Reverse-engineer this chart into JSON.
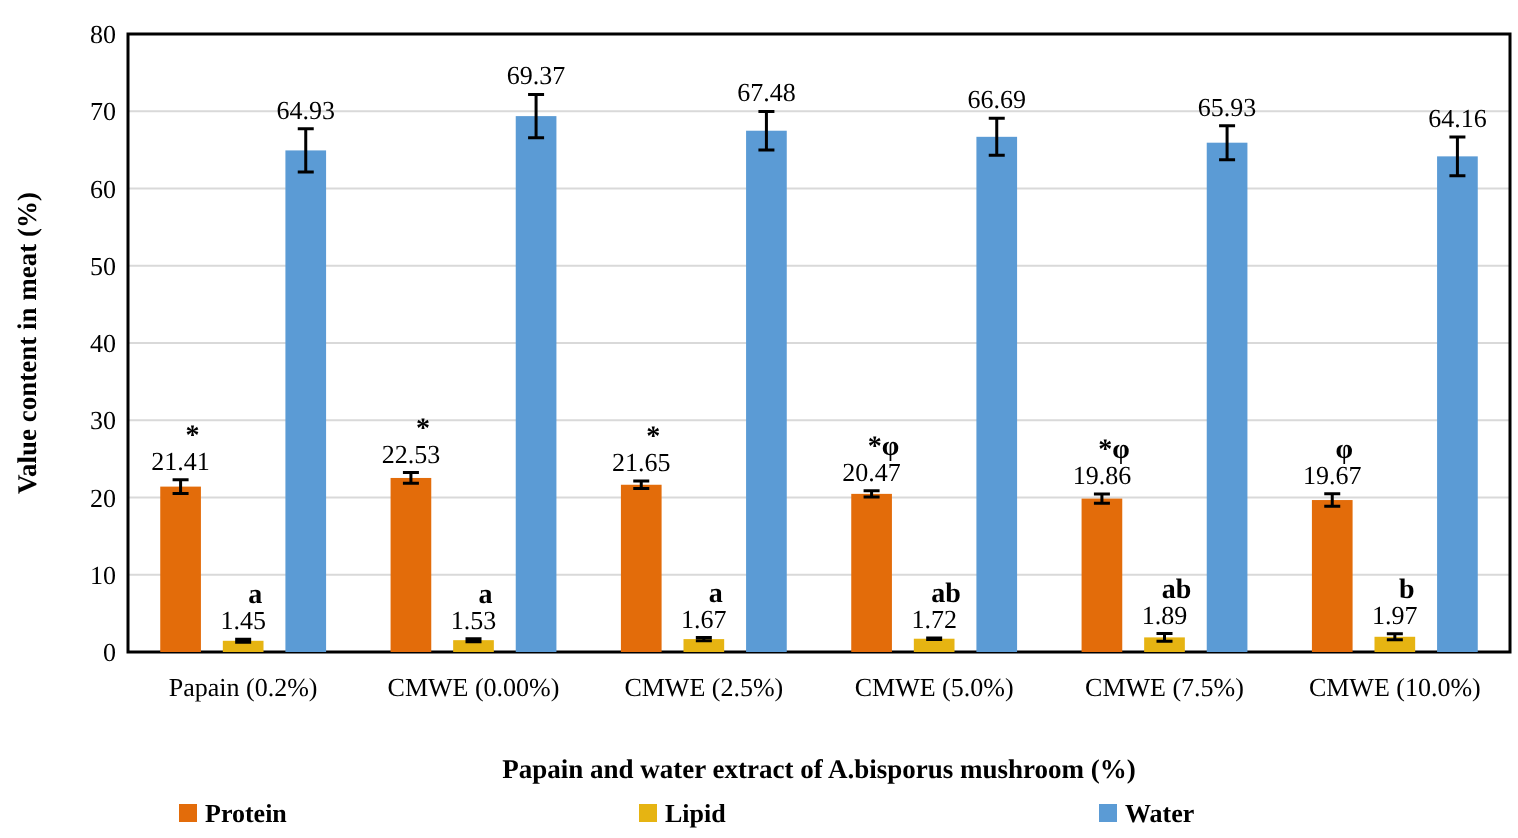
{
  "chart_data": {
    "type": "bar",
    "xlabel": "Papain and water extract of A.bisporus mushroom  (%)",
    "ylabel": "Value content in meat (%)",
    "categories": [
      "Papain (0.2%)",
      "CMWE (0.00%)",
      "CMWE (2.5%)",
      "CMWE (5.0%)",
      "CMWE (7.5%)",
      "CMWE (10.0%)"
    ],
    "series": [
      {
        "name": "Protein",
        "color": "#e36c0a",
        "values": [
          21.41,
          22.53,
          21.65,
          20.47,
          19.86,
          19.67
        ],
        "errors": [
          0.9,
          0.7,
          0.5,
          0.4,
          0.6,
          0.8
        ]
      },
      {
        "name": "Lipid",
        "color": "#e6b412",
        "values": [
          1.45,
          1.53,
          1.67,
          1.72,
          1.89,
          1.97
        ],
        "errors": [
          0.2,
          0.2,
          0.2,
          0.1,
          0.5,
          0.4
        ]
      },
      {
        "name": "Water",
        "color": "#5b9bd5",
        "values": [
          64.93,
          69.37,
          67.48,
          66.69,
          65.93,
          64.16
        ],
        "errors": [
          2.8,
          2.8,
          2.5,
          2.4,
          2.2,
          2.5
        ]
      }
    ],
    "ylim": [
      0,
      80
    ],
    "yticks": [
      0,
      10,
      20,
      30,
      40,
      50,
      60,
      70,
      80
    ],
    "grid": "y",
    "legend": "bottom",
    "data_labels": true,
    "annotations": [
      "*",
      "a",
      "*",
      "a",
      "*",
      "a",
      "*φ",
      "ab",
      "*φ",
      "ab",
      "φ",
      "b"
    ]
  }
}
